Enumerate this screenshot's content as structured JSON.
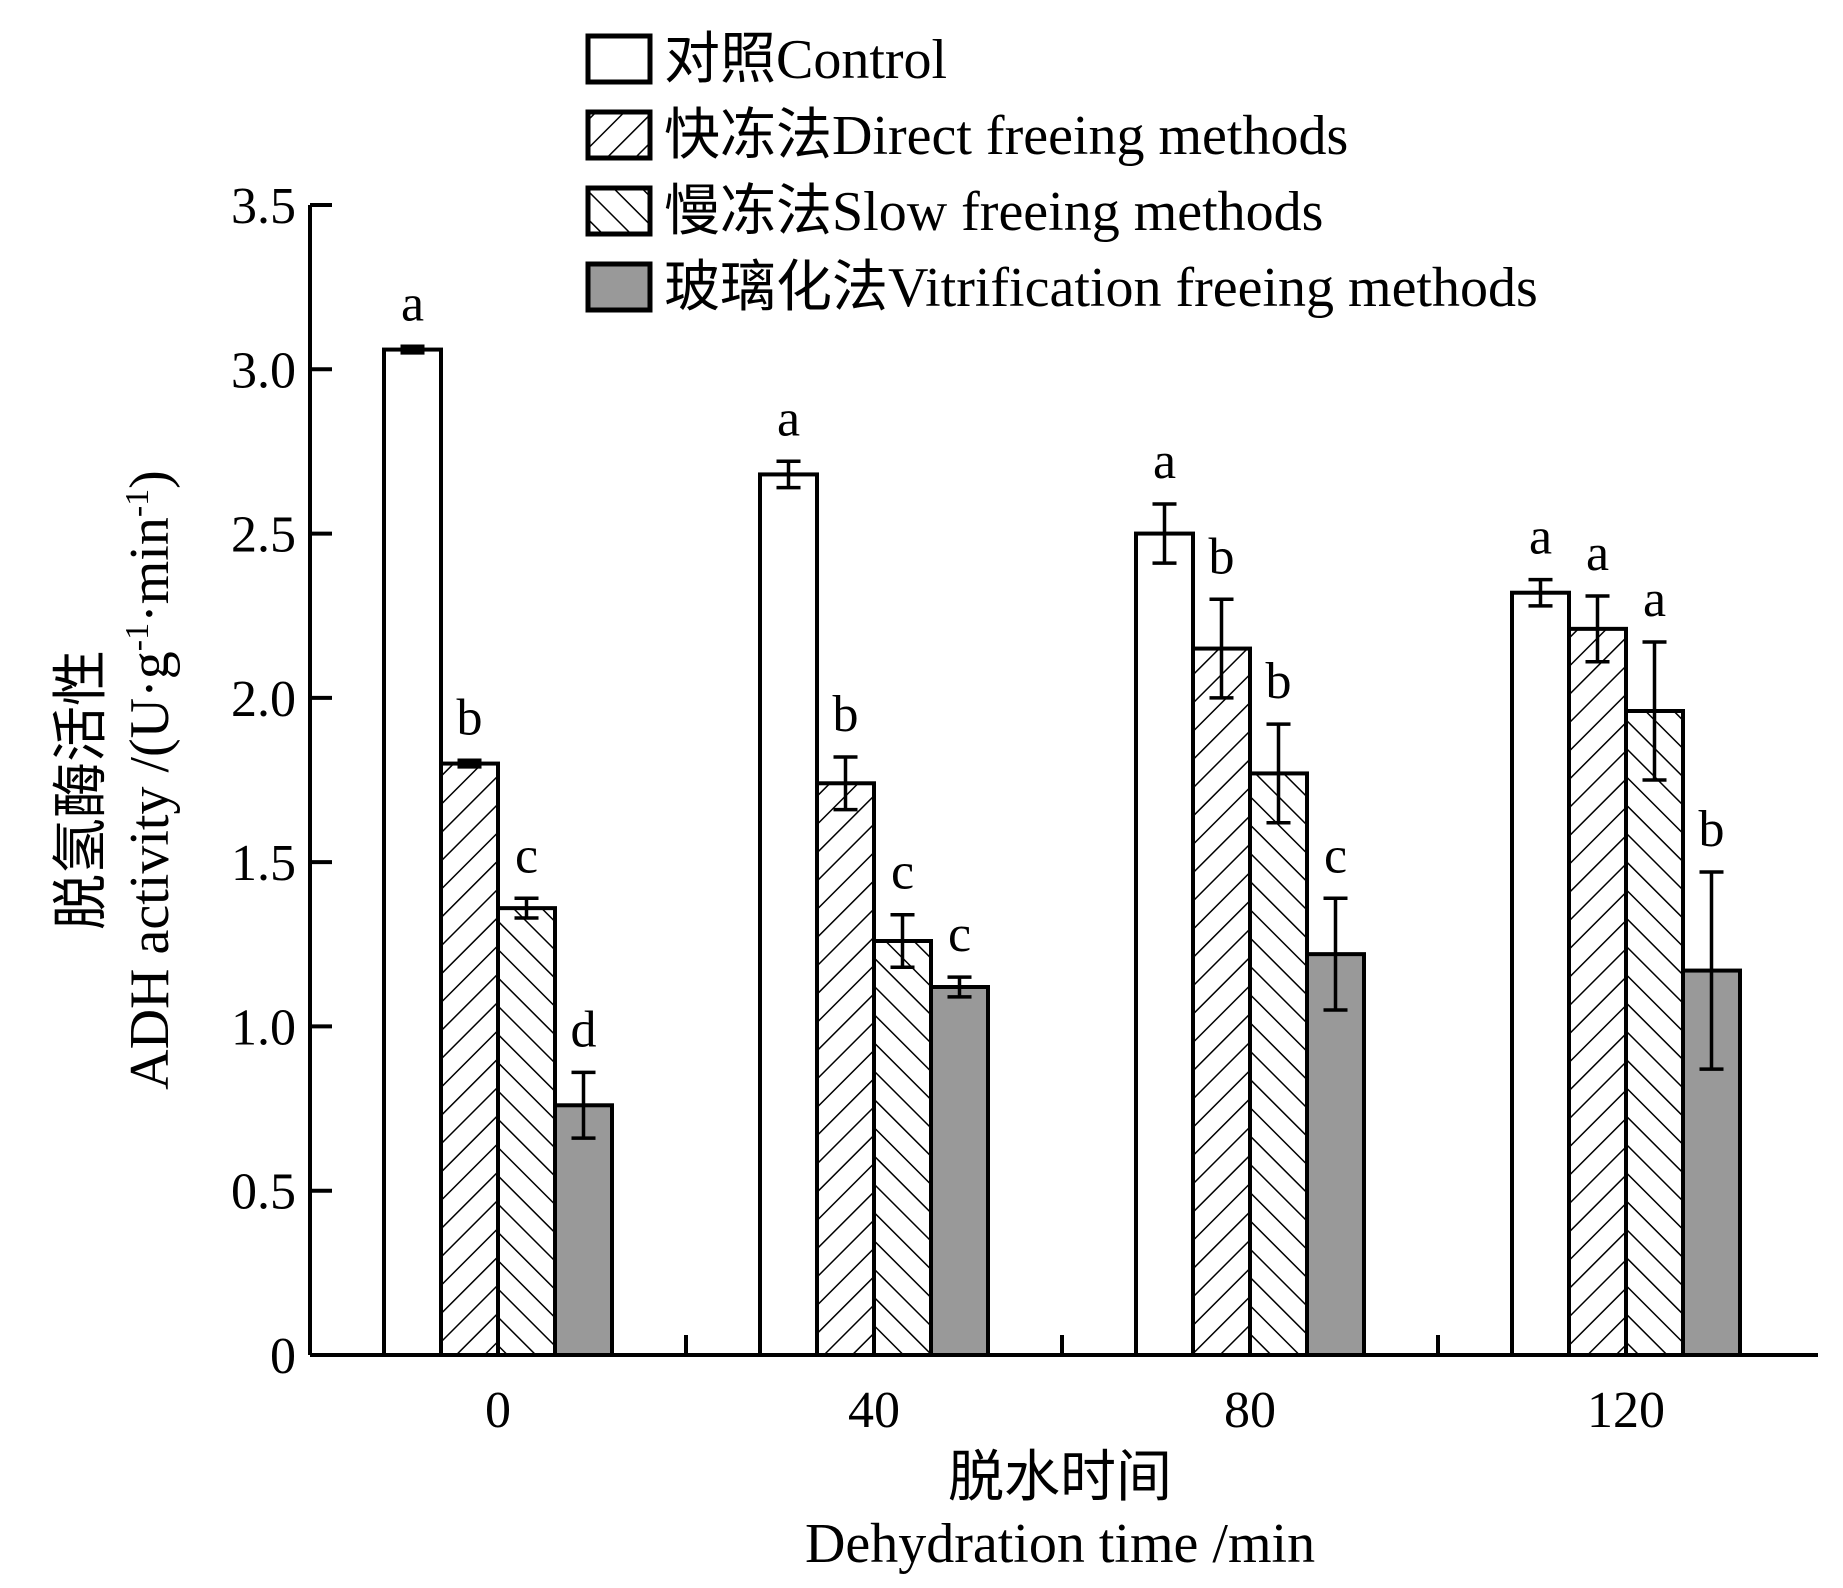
{
  "chart_data": {
    "type": "bar",
    "categories": [
      "0",
      "40",
      "80",
      "120"
    ],
    "series": [
      {
        "name": "对照Control",
        "pattern": "none",
        "color": "#ffffff",
        "values": [
          3.06,
          2.68,
          2.5,
          2.32
        ],
        "errors": [
          0.01,
          0.04,
          0.09,
          0.04
        ],
        "sig_labels": [
          "a",
          "a",
          "a",
          "a"
        ]
      },
      {
        "name": "快冻法Direct freeing methods",
        "pattern": "hatch-forward",
        "color": "#ffffff",
        "values": [
          1.8,
          1.74,
          2.15,
          2.21
        ],
        "errors": [
          0.01,
          0.08,
          0.15,
          0.1
        ],
        "sig_labels": [
          "b",
          "b",
          "b",
          "a"
        ]
      },
      {
        "name": "慢冻法Slow freeing methods",
        "pattern": "hatch-backward",
        "color": "#ffffff",
        "values": [
          1.36,
          1.26,
          1.77,
          1.96
        ],
        "errors": [
          0.03,
          0.08,
          0.15,
          0.21
        ],
        "sig_labels": [
          "c",
          "c",
          "b",
          "a"
        ]
      },
      {
        "name": "玻璃化法Vitrification freeing methods",
        "pattern": "solid",
        "color": "#999999",
        "values": [
          0.76,
          1.12,
          1.22,
          1.17
        ],
        "errors": [
          0.1,
          0.03,
          0.17,
          0.3
        ],
        "sig_labels": [
          "d",
          "c",
          "c",
          "b"
        ]
      }
    ],
    "ylim": [
      0,
      3.5
    ],
    "yticks": [
      "0",
      "0.5",
      "1.0",
      "1.5",
      "2.0",
      "2.5",
      "3.0",
      "3.5"
    ],
    "ylabel_line1": "脱氢酶活性",
    "ylabel_line2_prefix": "ADH activity /(U",
    "ylabel_line2_mid": "·",
    "ylabel_line2_g": "g",
    "ylabel_sup1": "-1",
    "ylabel_line2_min": "·min",
    "ylabel_sup2": "-1",
    "ylabel_line2_suffix": ")",
    "xlabel_line1": "脱水时间",
    "xlabel_line2": "Dehydration time /min",
    "legend_position": "top",
    "grid": false
  }
}
